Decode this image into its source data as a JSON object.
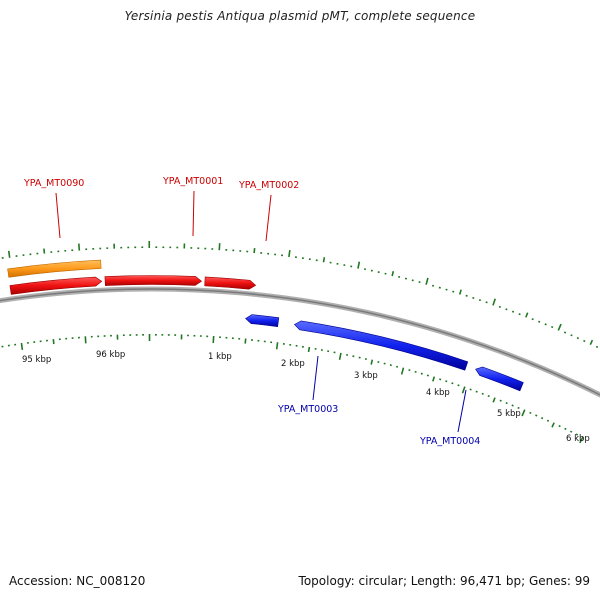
{
  "title": "Yersinia pestis Antiqua plasmid pMT, complete sequence",
  "footer": {
    "accession_label": "Accession: NC_008120",
    "stats_label": "Topology: circular; Length: 96,471 bp; Genes: 99"
  },
  "colors": {
    "forward_gene": "#ee1111",
    "forward_gene_dark": "#aa0000",
    "reverse_gene": "#1122ee",
    "reverse_gene_dark": "#000099",
    "orange_feature": "#ff9a1a",
    "backbone": "#888888",
    "tick": "#227722",
    "label_red": "#cc0000",
    "label_blue": "#0000aa"
  },
  "map": {
    "genome_length_bp": 96471,
    "scale_labels": [
      "95 kbp",
      "96 kbp",
      "1 kbp",
      "2 kbp",
      "3 kbp",
      "4 kbp",
      "5 kbp",
      "6 kbp"
    ],
    "genes": [
      {
        "id": "YPA_MT0090",
        "strand": "forward",
        "start_kbp": 94.9,
        "end_kbp": 96.25,
        "track": "orange"
      },
      {
        "id": "YPA_MT0090",
        "strand": "forward",
        "start_kbp": 94.9,
        "end_kbp": 96.25,
        "track": "forward"
      },
      {
        "id": "YPA_MT0001",
        "strand": "forward",
        "start_kbp": 96.3,
        "end_kbp": 1.25,
        "track": "forward"
      },
      {
        "id": "YPA_MT0002",
        "strand": "forward",
        "start_kbp": 1.3,
        "end_kbp": 2.05,
        "track": "forward"
      },
      {
        "id": "YPA_MT0003",
        "strand": "reverse",
        "start_kbp": 1.95,
        "end_kbp": 2.45,
        "track": "reverse"
      },
      {
        "id": "YPA_MT0004",
        "strand": "reverse",
        "start_kbp": 2.7,
        "end_kbp": 5.4,
        "track": "reverse"
      },
      {
        "id": "",
        "strand": "reverse",
        "start_kbp": 5.55,
        "end_kbp": 6.3,
        "track": "reverse"
      }
    ],
    "callouts": [
      {
        "text": "YPA_MT0090",
        "color": "red",
        "at_kbp": 95.6
      },
      {
        "text": "YPA_MT0001",
        "color": "red",
        "at_kbp": 0.55
      },
      {
        "text": "YPA_MT0002",
        "color": "red",
        "at_kbp": 1.6
      },
      {
        "text": "YPA_MT0003",
        "color": "blue",
        "at_kbp": 2.2
      },
      {
        "text": "YPA_MT0004",
        "color": "blue",
        "at_kbp": 4.2
      }
    ]
  }
}
